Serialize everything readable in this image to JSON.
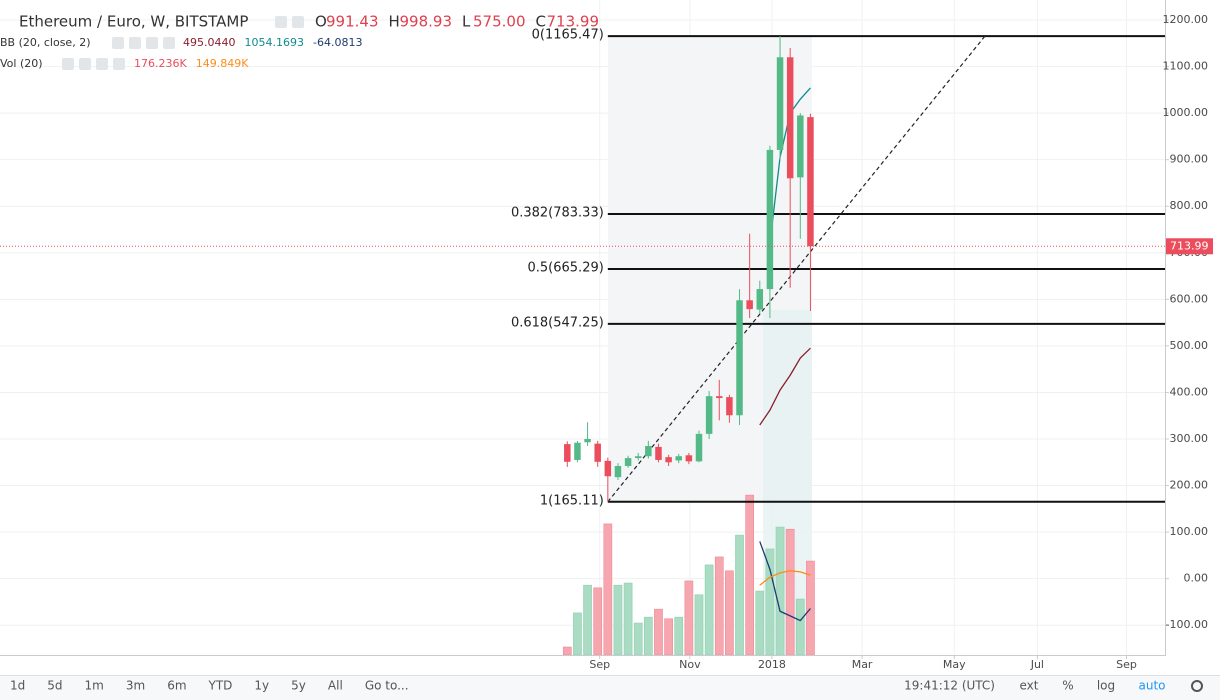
{
  "chart_data": {
    "type": "candlestick",
    "title": "Ethereum / Euro, W, BITSTAMP",
    "header_values": [
      {
        "key": "O",
        "text": "991.43"
      },
      {
        "key": "H",
        "text": "998.93"
      },
      {
        "key": "L",
        "text": "575.00"
      },
      {
        "key": "C",
        "text": "713.99"
      }
    ],
    "indicators": [
      {
        "name": "BB (20, close, 2)",
        "readings": [
          {
            "text": "495.0440",
            "color": "#8b1e2d"
          },
          {
            "text": "1054.1693",
            "color": "#0f8b8d"
          },
          {
            "text": "-64.0813",
            "color": "#1f3b73"
          }
        ]
      },
      {
        "name": "Vol (20)",
        "readings": [
          {
            "text": "176.236K",
            "color": "#eb4d5c"
          },
          {
            "text": "149.849K",
            "color": "#ff8c1a"
          }
        ]
      }
    ],
    "x": [
      -3.2,
      -2.2,
      -1.2,
      -0.2,
      0.8,
      1.8,
      2.8,
      3.8,
      4.8,
      5.8,
      6.8,
      7.8,
      8.8,
      9.8,
      10.8,
      11.8,
      12.8,
      13.8,
      14.8,
      15.8,
      16.8,
      17.8,
      18.8,
      19.8,
      20.8
    ],
    "open": [
      289,
      255,
      293,
      290,
      253,
      218,
      242,
      259,
      263,
      283,
      261,
      254,
      265,
      252,
      311,
      392,
      390,
      351,
      598,
      578,
      622,
      921,
      1120,
      862,
      991.43
    ],
    "high": [
      295,
      296,
      336,
      296,
      260,
      248,
      264,
      270,
      296,
      290,
      266,
      268,
      270,
      318,
      403,
      427,
      395,
      622,
      741,
      640,
      930,
      1165.47,
      1140,
      1000,
      998.93
    ],
    "low": [
      240,
      250,
      285,
      240,
      165.11,
      212,
      238,
      254,
      258,
      250,
      242,
      248,
      246,
      250,
      300,
      340,
      335,
      330,
      560,
      570,
      560,
      900,
      625,
      730,
      575
    ],
    "close": [
      251,
      292,
      300,
      251,
      220,
      242,
      259,
      263,
      285,
      255,
      250,
      263,
      252,
      311,
      392,
      388,
      351,
      598,
      579,
      622,
      921,
      1120,
      860,
      995,
      713.99
    ],
    "up_color": "#53b987",
    "down_color": "#eb4d5c",
    "volume": [
      15,
      79,
      131,
      126,
      246,
      131,
      135,
      60,
      71,
      86,
      68,
      71,
      139,
      113,
      169,
      184,
      158,
      225,
      300,
      120,
      199,
      240,
      236,
      105,
      176.236
    ],
    "volume_up_color": "#a9dcc3",
    "volume_down_color": "#f5a6ae",
    "volume_lim": [
      0,
      1229
    ],
    "lines": [
      {
        "color": "#8b1e2d",
        "axis": "price",
        "values": [
          null,
          null,
          null,
          null,
          null,
          null,
          null,
          null,
          null,
          null,
          null,
          null,
          null,
          null,
          null,
          null,
          null,
          null,
          null,
          330,
          362,
          405,
          437,
          474,
          495.044
        ]
      },
      {
        "color": "#0f8b8d",
        "axis": "price",
        "values": [
          null,
          null,
          null,
          null,
          null,
          null,
          null,
          null,
          null,
          null,
          null,
          null,
          null,
          null,
          null,
          null,
          null,
          null,
          null,
          null,
          720,
          905,
          1000,
          1030,
          1054.1693
        ]
      },
      {
        "color": "#1f3b73",
        "axis": "price",
        "values": [
          null,
          null,
          null,
          null,
          null,
          null,
          null,
          null,
          null,
          null,
          null,
          null,
          null,
          null,
          null,
          null,
          null,
          null,
          null,
          80,
          20,
          -70,
          -80,
          -90,
          -64.0813
        ]
      },
      {
        "color": "#ff8c1a",
        "axis": "volume",
        "values": [
          null,
          null,
          null,
          null,
          null,
          null,
          null,
          null,
          null,
          null,
          null,
          null,
          null,
          null,
          null,
          null,
          null,
          null,
          null,
          131,
          146,
          154,
          158,
          156,
          149.849
        ]
      }
    ],
    "fib_levels": [
      {
        "value": 1165.47,
        "label": "0(1165.47)"
      },
      {
        "value": 783.33,
        "label": "0.382(783.33)"
      },
      {
        "value": 665.29,
        "label": "0.5(665.29)"
      },
      {
        "value": 547.25,
        "label": "0.618(547.25)"
      },
      {
        "value": 165.11,
        "label": "1(165.11)"
      }
    ],
    "ylim": [
      -164,
      1243
    ],
    "yticks": [
      {
        "value": 1200,
        "label": "1200.00"
      },
      {
        "value": 1100,
        "label": "1100.00"
      },
      {
        "value": 1000,
        "label": "1000.00"
      },
      {
        "value": 900,
        "label": "900.00"
      },
      {
        "value": 800,
        "label": "800.00"
      },
      {
        "value": 700,
        "label": "700.00"
      },
      {
        "value": 600,
        "label": "600.00"
      },
      {
        "value": 500,
        "label": "500.00"
      },
      {
        "value": 400,
        "label": "400.00"
      },
      {
        "value": 300,
        "label": "300.00"
      },
      {
        "value": 200,
        "label": "200.00"
      },
      {
        "value": 100,
        "label": "100.00"
      },
      {
        "value": 0,
        "label": "0.00"
      },
      {
        "value": -100,
        "label": "-100.00"
      }
    ],
    "xlim": [
      -59.2,
      55.8
    ],
    "xticks": [
      {
        "value": 0,
        "label": "Sep"
      },
      {
        "value": 8.9,
        "label": "Nov"
      },
      {
        "value": 17.0,
        "label": "2018"
      },
      {
        "value": 25.9,
        "label": "Mar"
      },
      {
        "value": 35.0,
        "label": "May"
      },
      {
        "value": 43.2,
        "label": "Jul"
      },
      {
        "value": 52.0,
        "label": "Sep"
      }
    ],
    "grid": true,
    "last_price_color": "#eb4d5c",
    "toolbar": {
      "ranges": [
        "1d",
        "5d",
        "1m",
        "3m",
        "6m",
        "YTD",
        "1y",
        "5y",
        "All"
      ],
      "goto": "Go to...",
      "clock": "19:41:12 (UTC)",
      "options": [
        "ext",
        "%",
        "log",
        "auto"
      ]
    }
  }
}
